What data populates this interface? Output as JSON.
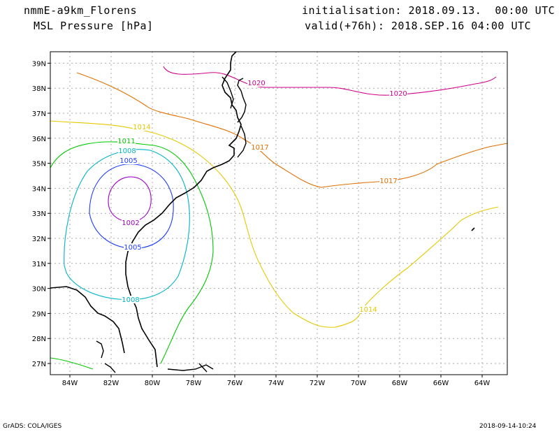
{
  "header": {
    "model": "nmmE-a9km_Florens",
    "field": "MSL Pressure [hPa]",
    "init": "initialisation: 2018.09.13.  00:00 UTC",
    "valid": "valid(+76h): 2018.SEP.16 04:00 UTC"
  },
  "footer": {
    "credit": "GrADS: COLA/IGES",
    "timestamp": "2018-09-14-10:24"
  },
  "map": {
    "lon_labels": [
      "84W",
      "82W",
      "80W",
      "78W",
      "76W",
      "74W",
      "72W",
      "70W",
      "68W",
      "66W",
      "64W"
    ],
    "lat_labels": [
      "27N",
      "28N",
      "29N",
      "30N",
      "31N",
      "32N",
      "33N",
      "34N",
      "35N",
      "36N",
      "37N",
      "38N",
      "39N"
    ],
    "colors": {
      "c1002": "#a000c8",
      "c1005": "#1e3cff",
      "c1008": "#00b4c8",
      "c1011": "#00c800",
      "c1014": "#e6c800",
      "c1017": "#e07000",
      "c1020": "#d0008c",
      "coast": "#000000",
      "grid": "#aaaaaa"
    },
    "contour_labels": {
      "c1002": "1002",
      "c1005a": "1005",
      "c1005b": "1005",
      "c1008a": "1008",
      "c1008b": "1008",
      "c1011": "1011",
      "c1014a": "1014",
      "c1014b": "1014",
      "c1017a": "1017",
      "c1017b": "1017",
      "c1020a": "1020",
      "c1020b": "1020"
    }
  }
}
